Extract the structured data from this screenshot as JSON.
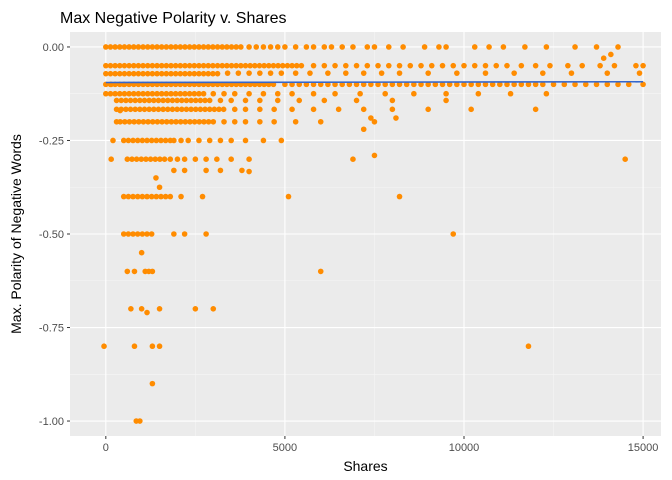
{
  "chart_data": {
    "type": "scatter",
    "title": "Max Negative Polarity v. Shares",
    "xlabel": "Shares",
    "ylabel": "Max. Polarity of Negative Words",
    "xlim": [
      -1000,
      15500
    ],
    "ylim": [
      -1.04,
      0.04
    ],
    "x_ticks": [
      0,
      5000,
      10000,
      15000
    ],
    "x_tick_labels": [
      "0",
      "5000",
      "10000",
      "15000"
    ],
    "y_ticks": [
      0,
      -0.25,
      -0.5,
      -0.75,
      -1.0
    ],
    "y_tick_labels": [
      "0.00",
      "-0.25",
      "-0.50",
      "-0.75",
      "-1.00"
    ],
    "grid": true,
    "background": "#EBEBEB",
    "point_color": "#FF8C00",
    "trend_color": "#3366CC",
    "trend_line": {
      "x": [
        0,
        15000
      ],
      "y": [
        -0.095,
        -0.093
      ]
    },
    "dense_rows": [
      {
        "y": 0.0,
        "x_from": 0,
        "x_to": 3800
      },
      {
        "y": -0.05,
        "x_from": 0,
        "x_to": 5500
      },
      {
        "y": -0.0714,
        "x_from": 0,
        "x_to": 3200
      },
      {
        "y": -0.1,
        "x_from": 0,
        "x_to": 4800
      },
      {
        "y": -0.125,
        "x_from": 0,
        "x_to": 2800
      },
      {
        "y": -0.1429,
        "x_from": 300,
        "x_to": 3000
      },
      {
        "y": -0.1667,
        "x_from": 300,
        "x_to": 3400
      },
      {
        "y": -0.2,
        "x_from": 400,
        "x_to": 3000
      },
      {
        "y": -0.25,
        "x_from": 500,
        "x_to": 1800
      },
      {
        "y": -0.3,
        "x_from": 600,
        "x_to": 1700
      },
      {
        "y": -0.4,
        "x_from": 500,
        "x_to": 1800
      },
      {
        "y": -0.5,
        "x_from": 500,
        "x_to": 1300
      }
    ],
    "points": [
      [
        -50,
        -0.8
      ],
      [
        150,
        -0.3
      ],
      [
        200,
        -0.25
      ],
      [
        150,
        -0.1
      ],
      [
        300,
        -0.2
      ],
      [
        400,
        -0.17
      ],
      [
        500,
        -0.1
      ],
      [
        4000,
        0
      ],
      [
        4200,
        0
      ],
      [
        4400,
        0
      ],
      [
        4600,
        0
      ],
      [
        4800,
        0
      ],
      [
        5000,
        0
      ],
      [
        5300,
        0
      ],
      [
        5600,
        0
      ],
      [
        5800,
        0
      ],
      [
        6100,
        0
      ],
      [
        6300,
        0
      ],
      [
        6600,
        0
      ],
      [
        6900,
        0
      ],
      [
        7300,
        0
      ],
      [
        7500,
        0
      ],
      [
        7900,
        0
      ],
      [
        8300,
        0
      ],
      [
        8900,
        0
      ],
      [
        9300,
        0
      ],
      [
        9500,
        0
      ],
      [
        10300,
        0
      ],
      [
        10700,
        0
      ],
      [
        11100,
        0
      ],
      [
        11700,
        0
      ],
      [
        12300,
        0
      ],
      [
        13100,
        0
      ],
      [
        13700,
        0
      ],
      [
        14300,
        0
      ],
      [
        5800,
        -0.05
      ],
      [
        6100,
        -0.05
      ],
      [
        6400,
        -0.05
      ],
      [
        6700,
        -0.05
      ],
      [
        7000,
        -0.05
      ],
      [
        7300,
        -0.05
      ],
      [
        7600,
        -0.05
      ],
      [
        7900,
        -0.05
      ],
      [
        8200,
        -0.05
      ],
      [
        8500,
        -0.05
      ],
      [
        8800,
        -0.05
      ],
      [
        9100,
        -0.05
      ],
      [
        9400,
        -0.05
      ],
      [
        9700,
        -0.05
      ],
      [
        10000,
        -0.05
      ],
      [
        10300,
        -0.05
      ],
      [
        10600,
        -0.05
      ],
      [
        10900,
        -0.05
      ],
      [
        11200,
        -0.05
      ],
      [
        11600,
        -0.05
      ],
      [
        12000,
        -0.05
      ],
      [
        12400,
        -0.05
      ],
      [
        12900,
        -0.05
      ],
      [
        13300,
        -0.05
      ],
      [
        13800,
        -0.05
      ],
      [
        14200,
        -0.05
      ],
      [
        14800,
        -0.05
      ],
      [
        15000,
        -0.05
      ],
      [
        13900,
        -0.03
      ],
      [
        14100,
        -0.02
      ],
      [
        3400,
        -0.07
      ],
      [
        3700,
        -0.07
      ],
      [
        4000,
        -0.07
      ],
      [
        4300,
        -0.07
      ],
      [
        4600,
        -0.07
      ],
      [
        4900,
        -0.07
      ],
      [
        5300,
        -0.07
      ],
      [
        5700,
        -0.07
      ],
      [
        6200,
        -0.07
      ],
      [
        6700,
        -0.07
      ],
      [
        7200,
        -0.07
      ],
      [
        7700,
        -0.07
      ],
      [
        8200,
        -0.07
      ],
      [
        9000,
        -0.07
      ],
      [
        9800,
        -0.07
      ],
      [
        10600,
        -0.07
      ],
      [
        11400,
        -0.07
      ],
      [
        12200,
        -0.07
      ],
      [
        13000,
        -0.07
      ],
      [
        14000,
        -0.07
      ],
      [
        14900,
        -0.07
      ],
      [
        5000,
        -0.1
      ],
      [
        5200,
        -0.1
      ],
      [
        5400,
        -0.1
      ],
      [
        5600,
        -0.1
      ],
      [
        5800,
        -0.1
      ],
      [
        6000,
        -0.1
      ],
      [
        6200,
        -0.1
      ],
      [
        6400,
        -0.1
      ],
      [
        6600,
        -0.1
      ],
      [
        6800,
        -0.1
      ],
      [
        7000,
        -0.1
      ],
      [
        7200,
        -0.1
      ],
      [
        7400,
        -0.1
      ],
      [
        7600,
        -0.1
      ],
      [
        7800,
        -0.1
      ],
      [
        8000,
        -0.1
      ],
      [
        8200,
        -0.1
      ],
      [
        8400,
        -0.1
      ],
      [
        8600,
        -0.1
      ],
      [
        8800,
        -0.1
      ],
      [
        9000,
        -0.1
      ],
      [
        9200,
        -0.1
      ],
      [
        9400,
        -0.1
      ],
      [
        9600,
        -0.1
      ],
      [
        9800,
        -0.1
      ],
      [
        10000,
        -0.1
      ],
      [
        10200,
        -0.1
      ],
      [
        10400,
        -0.1
      ],
      [
        10600,
        -0.1
      ],
      [
        10800,
        -0.1
      ],
      [
        11000,
        -0.1
      ],
      [
        11200,
        -0.1
      ],
      [
        11400,
        -0.1
      ],
      [
        11600,
        -0.1
      ],
      [
        11800,
        -0.1
      ],
      [
        12000,
        -0.1
      ],
      [
        12200,
        -0.1
      ],
      [
        12500,
        -0.1
      ],
      [
        12800,
        -0.1
      ],
      [
        13100,
        -0.1
      ],
      [
        13400,
        -0.1
      ],
      [
        13700,
        -0.1
      ],
      [
        14000,
        -0.1
      ],
      [
        14300,
        -0.1
      ],
      [
        14600,
        -0.1
      ],
      [
        15000,
        -0.1
      ],
      [
        3000,
        -0.125
      ],
      [
        3300,
        -0.125
      ],
      [
        3600,
        -0.125
      ],
      [
        4000,
        -0.125
      ],
      [
        4400,
        -0.125
      ],
      [
        4800,
        -0.125
      ],
      [
        5200,
        -0.125
      ],
      [
        5800,
        -0.125
      ],
      [
        6400,
        -0.125
      ],
      [
        7100,
        -0.125
      ],
      [
        7800,
        -0.125
      ],
      [
        8600,
        -0.125
      ],
      [
        9500,
        -0.125
      ],
      [
        10400,
        -0.125
      ],
      [
        11300,
        -0.125
      ],
      [
        12300,
        -0.125
      ],
      [
        3200,
        -0.1429
      ],
      [
        3500,
        -0.1429
      ],
      [
        3900,
        -0.1429
      ],
      [
        4300,
        -0.1429
      ],
      [
        4800,
        -0.1429
      ],
      [
        5400,
        -0.1429
      ],
      [
        6100,
        -0.1429
      ],
      [
        7000,
        -0.1429
      ],
      [
        8000,
        -0.1429
      ],
      [
        9500,
        -0.1429
      ],
      [
        3600,
        -0.1667
      ],
      [
        3900,
        -0.1667
      ],
      [
        4300,
        -0.1667
      ],
      [
        4700,
        -0.1667
      ],
      [
        5200,
        -0.1667
      ],
      [
        5800,
        -0.1667
      ],
      [
        6500,
        -0.1667
      ],
      [
        7200,
        -0.1667
      ],
      [
        8000,
        -0.1667
      ],
      [
        9000,
        -0.1667
      ],
      [
        10200,
        -0.1667
      ],
      [
        12000,
        -0.1667
      ],
      [
        3300,
        -0.2
      ],
      [
        3600,
        -0.2
      ],
      [
        3900,
        -0.2
      ],
      [
        4300,
        -0.2
      ],
      [
        4700,
        -0.2
      ],
      [
        5300,
        -0.2
      ],
      [
        6000,
        -0.2
      ],
      [
        7500,
        -0.2
      ],
      [
        7400,
        -0.19
      ],
      [
        8100,
        -0.19
      ],
      [
        7200,
        -0.22
      ],
      [
        1900,
        -0.25
      ],
      [
        2100,
        -0.25
      ],
      [
        2300,
        -0.25
      ],
      [
        2600,
        -0.25
      ],
      [
        2900,
        -0.25
      ],
      [
        3200,
        -0.25
      ],
      [
        3500,
        -0.25
      ],
      [
        3900,
        -0.25
      ],
      [
        4400,
        -0.25
      ],
      [
        4900,
        -0.25
      ],
      [
        1800,
        -0.3
      ],
      [
        2000,
        -0.3
      ],
      [
        2200,
        -0.3
      ],
      [
        2500,
        -0.3
      ],
      [
        2800,
        -0.3
      ],
      [
        3100,
        -0.3
      ],
      [
        3500,
        -0.3
      ],
      [
        4000,
        -0.3
      ],
      [
        6900,
        -0.3
      ],
      [
        7500,
        -0.29
      ],
      [
        1900,
        -0.33
      ],
      [
        2200,
        -0.33
      ],
      [
        2800,
        -0.33
      ],
      [
        3200,
        -0.33
      ],
      [
        3800,
        -0.33
      ],
      [
        4000,
        -0.333
      ],
      [
        1500,
        -0.375
      ],
      [
        1400,
        -0.35
      ],
      [
        2100,
        -0.4
      ],
      [
        2700,
        -0.4
      ],
      [
        8200,
        -0.4
      ],
      [
        1900,
        -0.5
      ],
      [
        2200,
        -0.5
      ],
      [
        2800,
        -0.5
      ],
      [
        9700,
        -0.5
      ],
      [
        1000,
        -0.55
      ],
      [
        600,
        -0.6
      ],
      [
        800,
        -0.6
      ],
      [
        1100,
        -0.6
      ],
      [
        1200,
        -0.6
      ],
      [
        1300,
        -0.6
      ],
      [
        6000,
        -0.6
      ],
      [
        5100,
        -0.4
      ],
      [
        700,
        -0.7
      ],
      [
        1000,
        -0.7
      ],
      [
        1500,
        -0.7
      ],
      [
        2500,
        -0.7
      ],
      [
        3000,
        -0.7
      ],
      [
        1150,
        -0.71
      ],
      [
        800,
        -0.8
      ],
      [
        1300,
        -0.8
      ],
      [
        1500,
        -0.8
      ],
      [
        11800,
        -0.8
      ],
      [
        1300,
        -0.9
      ],
      [
        850,
        -1.0
      ],
      [
        950,
        -1.0
      ],
      [
        14500,
        -0.3
      ]
    ]
  }
}
